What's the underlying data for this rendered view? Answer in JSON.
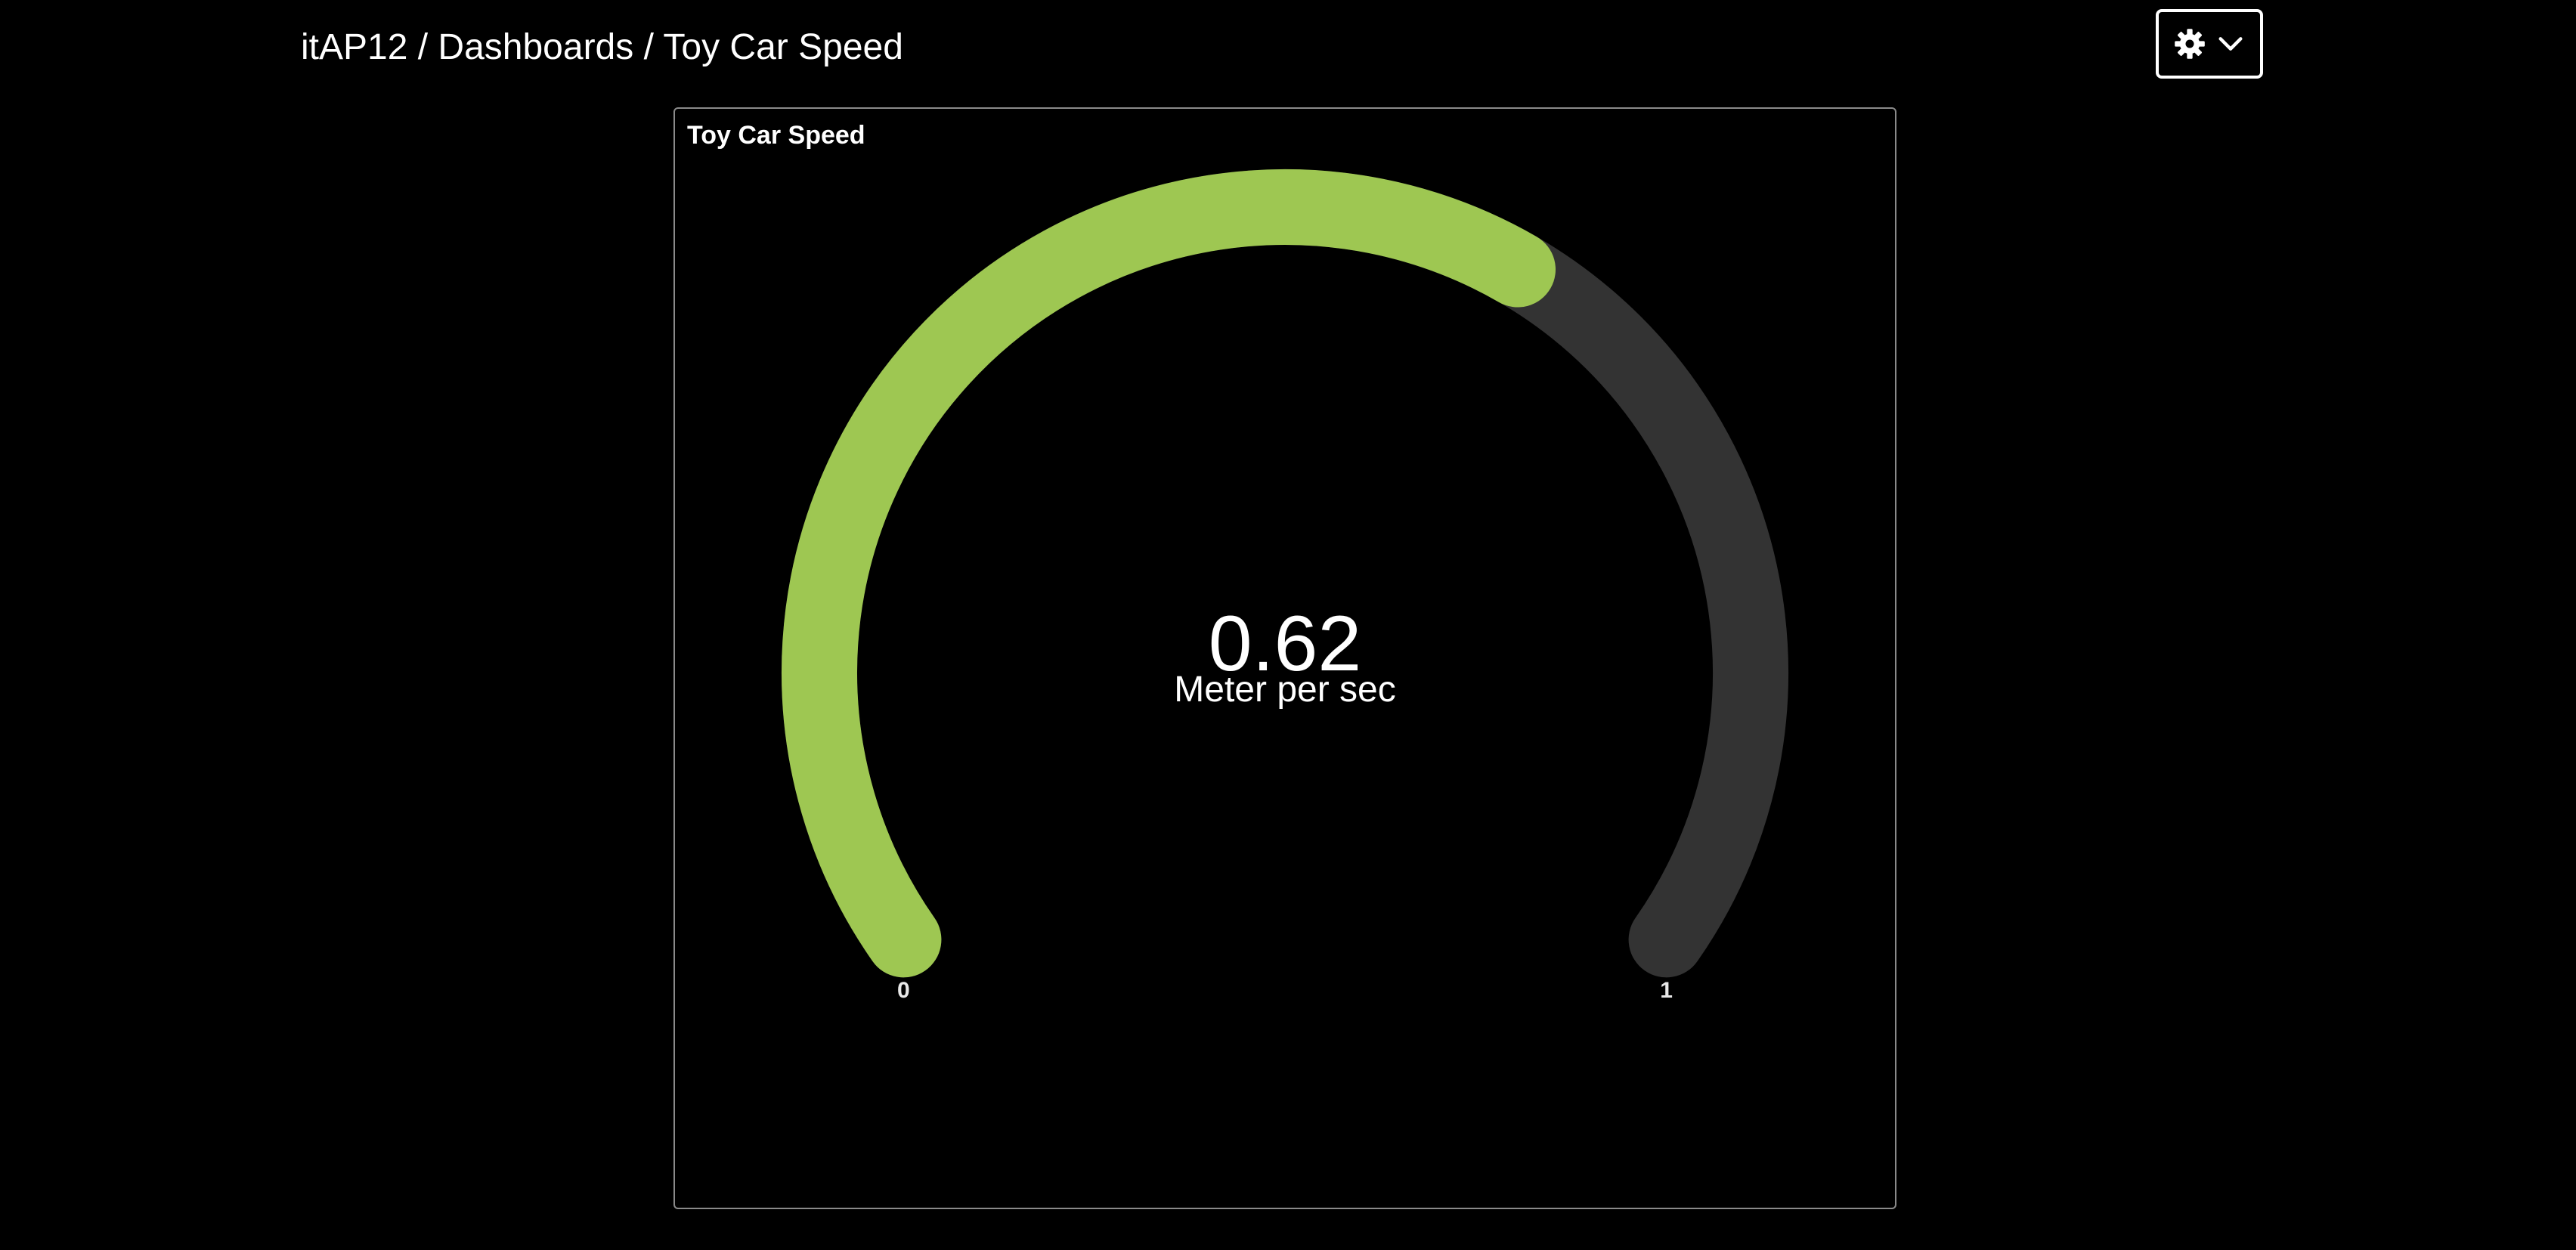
{
  "header": {
    "breadcrumb": "itAP12 / Dashboards / Toy Car Speed",
    "settings_icon": "gear-icon",
    "dropdown_icon": "chevron-down-icon"
  },
  "panel": {
    "title": "Toy Car Speed",
    "gauge": {
      "value": 0.62,
      "value_text": "0.62",
      "unit": "Meter per sec",
      "min": 0,
      "max": 1,
      "min_label": "0",
      "max_label": "1",
      "fill_color": "#9ec752",
      "track_color": "#333333"
    }
  }
}
